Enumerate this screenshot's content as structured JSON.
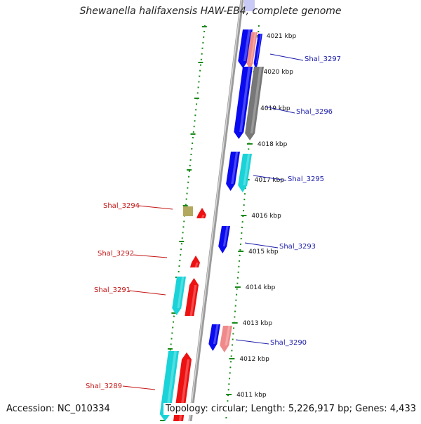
{
  "title": "Shewanella halifaxensis HAW-EB4, complete genome",
  "accession": "Accession: NC_010334",
  "topology": "Topology: circular; Length: 5,226,917 bp; Genes: 4,433",
  "colors": {
    "blue": "#0a0af0",
    "red": "#ee1111",
    "cyan": "#19d3d8",
    "pink": "#f08a8a",
    "gray": "#777777",
    "olive": "#b3a860",
    "label_right": "#1b1baa",
    "label_left": "#c41414",
    "tick_green": "#1a8a1a"
  },
  "scale_ticks": [
    {
      "label": "4021 kbp"
    },
    {
      "label": "4020 kbp"
    },
    {
      "label": "4019 kbp"
    },
    {
      "label": "4018 kbp"
    },
    {
      "label": "4017 kbp"
    },
    {
      "label": "4016 kbp"
    },
    {
      "label": "4015 kbp"
    },
    {
      "label": "4014 kbp"
    },
    {
      "label": "4013 kbp"
    },
    {
      "label": "4012 kbp"
    },
    {
      "label": "4011 kbp"
    }
  ],
  "gene_labels_right": [
    {
      "label": "Shal_3297"
    },
    {
      "label": "Shal_3296"
    },
    {
      "label": "Shal_3295"
    },
    {
      "label": "Shal_3293"
    },
    {
      "label": "Shal_3290"
    }
  ],
  "gene_labels_left": [
    {
      "label": "Shal_3294"
    },
    {
      "label": "Shal_3292"
    },
    {
      "label": "Shal_3291"
    },
    {
      "label": "Shal_3289"
    }
  ]
}
